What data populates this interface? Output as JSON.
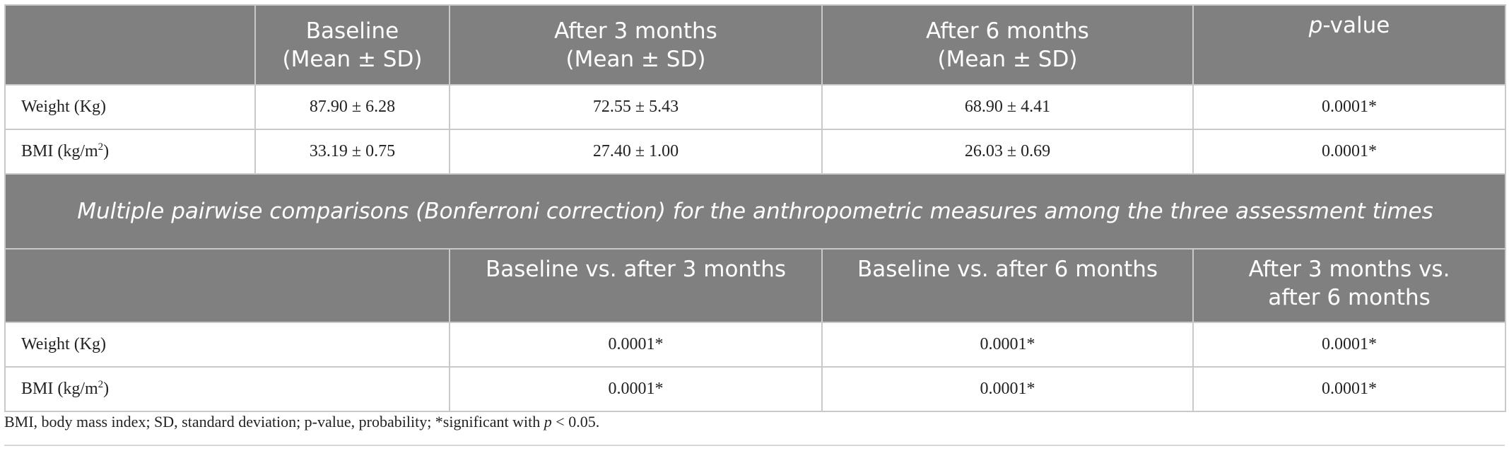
{
  "header": {
    "blank": "",
    "baseline": [
      "Baseline",
      "(Mean ± SD)"
    ],
    "after3": [
      "After 3 months",
      "(Mean ± SD)"
    ],
    "after6": [
      "After 6 months",
      "(Mean ± SD)"
    ],
    "pvalue_italic": "p",
    "pvalue_rest": "-value"
  },
  "rows": [
    {
      "label": "Weight (Kg)",
      "baseline": "87.90 ± 6.28",
      "after3": "72.55 ± 5.43",
      "after6": "68.90 ± 4.41",
      "p": "0.0001*"
    },
    {
      "label_prefix": "BMI (kg/m",
      "label_sup": "2",
      "label_suffix": ")",
      "baseline": "33.19 ± 0.75",
      "after3": "27.40 ± 1.00",
      "after6": "26.03 ± 0.69",
      "p": "0.0001*"
    }
  ],
  "subtitle": "Multiple pairwise comparisons (Bonferroni correction) for the anthropometric measures among the three assessment times",
  "pairwise_header": {
    "blank": "",
    "col1": "Baseline vs. after 3 months",
    "col2": "Baseline vs. after 6 months",
    "col3": [
      "After 3 months vs.",
      "after 6 months"
    ]
  },
  "pairwise_rows": [
    {
      "label": "Weight (Kg)",
      "c1": "0.0001*",
      "c2": "0.0001*",
      "c3": "0.0001*"
    },
    {
      "label_prefix": "BMI (kg/m",
      "label_sup": "2",
      "label_suffix": ")",
      "c1": "0.0001*",
      "c2": "0.0001*",
      "c3": "0.0001*"
    }
  ],
  "footnote": {
    "text": "BMI, body mass index; SD, standard deviation; p-value, probability; *significant with ",
    "p_italic": "p",
    "tail": " < 0.05."
  },
  "colors": {
    "header_bg": "#808080",
    "header_text": "#ffffff",
    "grid": "#c9c9c9"
  }
}
